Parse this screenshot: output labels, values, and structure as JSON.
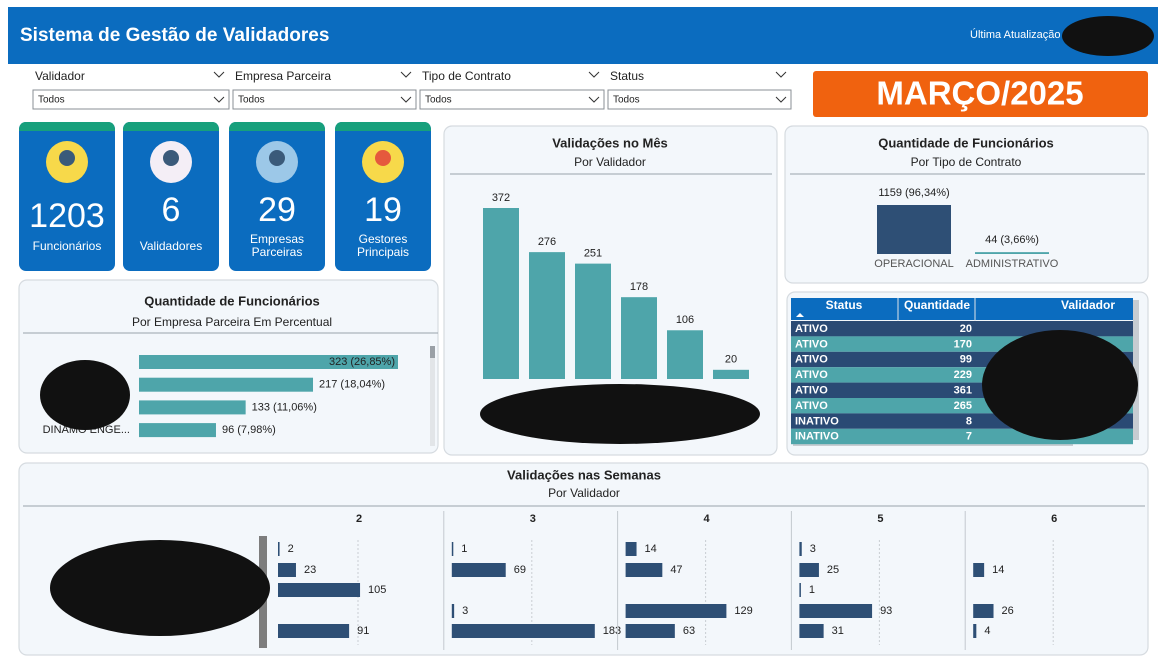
{
  "header": {
    "title": "Sistema de Gestão de Validadores",
    "updated_label": "Última Atualização"
  },
  "filters": [
    {
      "label": "Validador",
      "value": "Todos"
    },
    {
      "label": "Empresa Parceira",
      "value": "Todos"
    },
    {
      "label": "Tipo de Contrato",
      "value": "Todos"
    },
    {
      "label": "Status",
      "value": "Todos"
    }
  ],
  "month": "MARÇO/2025",
  "kpis": [
    {
      "value": 1203,
      "label": "Funcionários"
    },
    {
      "value": 6,
      "label": "Validadores"
    },
    {
      "value": 29,
      "label": "Empresas Parceiras"
    },
    {
      "value": 19,
      "label": "Gestores Principais"
    }
  ],
  "table": {
    "columns": [
      "Status",
      "Quantidade",
      "Validador"
    ],
    "rows": [
      [
        "ATIVO",
        20,
        null
      ],
      [
        "ATIVO",
        170,
        null
      ],
      [
        "ATIVO",
        99,
        null
      ],
      [
        "ATIVO",
        229,
        null
      ],
      [
        "ATIVO",
        361,
        null
      ],
      [
        "ATIVO",
        265,
        null
      ],
      [
        "INATIVO",
        8,
        null
      ],
      [
        "INATIVO",
        7,
        null
      ]
    ]
  },
  "chart_data": [
    {
      "type": "bar",
      "title": "Validações no Mês",
      "subtitle": "Por Validador",
      "categories": [
        null,
        null,
        null,
        null,
        null,
        null
      ],
      "values": [
        372,
        276,
        251,
        178,
        106,
        20
      ],
      "color": "#4ea5aa"
    },
    {
      "type": "bar",
      "title": "Quantidade de Funcionários",
      "subtitle": "Por Tipo de Contrato",
      "categories": [
        "OPERACIONAL",
        "ADMINISTRATIVO"
      ],
      "values": [
        1159,
        44
      ],
      "value_labels": [
        "1159 (96,34%)",
        "44 (3,66%)"
      ],
      "colors": [
        "#2e4f75",
        "#4ea5aa"
      ]
    },
    {
      "type": "hbar",
      "title": "Quantidade de Funcionários",
      "subtitle": "Por Empresa Parceira Em Percentual",
      "categories": [
        null,
        null,
        null,
        "DINAMO ENGE..."
      ],
      "values": [
        323,
        217,
        133,
        96
      ],
      "value_labels": [
        "323 (26,85%)",
        "217 (18,04%)",
        "133 (11,06%)",
        "96 (7,98%)"
      ],
      "color": "#4ea5aa"
    },
    {
      "type": "hbar-multiples",
      "title": "Validações nas Semanas",
      "subtitle": "Por Validador",
      "categories": [
        null,
        null,
        null,
        null,
        null
      ],
      "series": [
        {
          "name": "2",
          "color": "#2e4f75",
          "values": [
            2,
            23,
            105,
            null,
            91
          ]
        },
        {
          "name": "3",
          "color": "#2e4f75",
          "values": [
            1,
            69,
            null,
            3,
            183
          ]
        },
        {
          "name": "4",
          "color": "#2e4f75",
          "values": [
            14,
            47,
            null,
            129,
            63
          ]
        },
        {
          "name": "5",
          "color": "#2e4f75",
          "values": [
            3,
            25,
            1,
            93,
            31
          ]
        },
        {
          "name": "6",
          "color": "#2e4f75",
          "values": [
            null,
            14,
            null,
            26,
            4
          ]
        }
      ]
    }
  ]
}
